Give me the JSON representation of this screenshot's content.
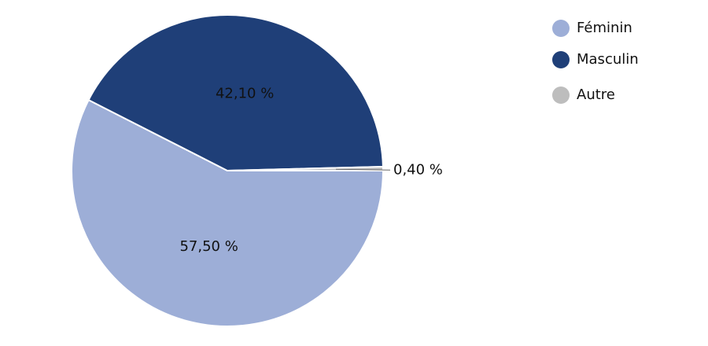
{
  "chart_data": {
    "type": "pie",
    "categories": [
      "Féminin",
      "Masculin",
      "Autre"
    ],
    "values": [
      57.5,
      42.1,
      0.4
    ],
    "value_labels": [
      "57,50 %",
      "42,10 %",
      "0,40 %"
    ],
    "colors": [
      "#9daed7",
      "#1f3f78",
      "#bdbdbd"
    ],
    "legend": "top-right"
  }
}
